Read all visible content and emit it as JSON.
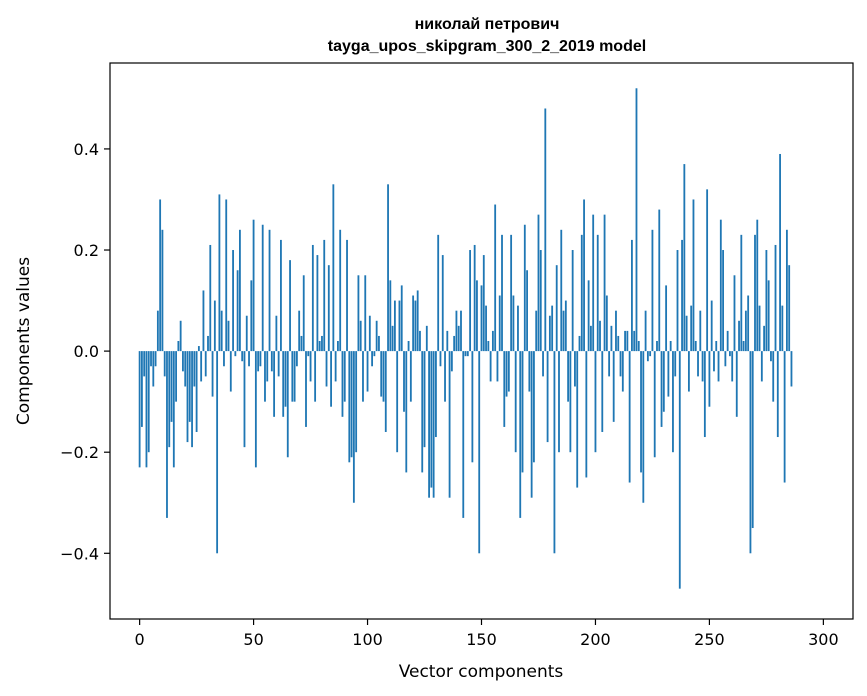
{
  "chart_data": {
    "type": "bar",
    "title": [
      "николай петрович",
      "tayga_upos_skipgram_300_2_2019 model"
    ],
    "xlabel": "Vector components",
    "ylabel": "Components values",
    "xlim": [
      -13,
      313
    ],
    "ylim": [
      -0.53,
      0.57
    ],
    "xticks": [
      0,
      50,
      100,
      150,
      200,
      250,
      300
    ],
    "yticks": [
      -0.4,
      -0.2,
      0.0,
      0.2,
      0.4
    ],
    "ytick_labels": [
      "−0.4",
      "−0.2",
      "0.0",
      "0.2",
      "0.4"
    ],
    "grid": false,
    "bar_color": "#1f77b4",
    "values": [
      -0.23,
      -0.15,
      -0.05,
      -0.23,
      -0.2,
      -0.03,
      -0.07,
      -0.03,
      0.08,
      0.3,
      0.24,
      -0.05,
      -0.33,
      -0.19,
      -0.14,
      -0.23,
      -0.1,
      0.02,
      0.06,
      -0.04,
      -0.07,
      -0.18,
      -0.14,
      -0.19,
      -0.07,
      -0.16,
      0.01,
      -0.06,
      0.12,
      -0.05,
      0.03,
      0.21,
      -0.09,
      0.1,
      -0.4,
      0.31,
      0.08,
      -0.03,
      0.3,
      0.06,
      -0.08,
      0.2,
      -0.01,
      0.16,
      0.24,
      -0.02,
      -0.19,
      0.07,
      -0.03,
      0.14,
      0.26,
      -0.23,
      -0.04,
      -0.03,
      0.25,
      -0.1,
      -0.06,
      0.24,
      -0.04,
      -0.13,
      0.07,
      -0.05,
      0.22,
      -0.13,
      -0.11,
      -0.21,
      0.18,
      -0.1,
      -0.1,
      -0.03,
      0.08,
      0.03,
      0.15,
      -0.15,
      -0.01,
      -0.06,
      0.21,
      -0.1,
      0.19,
      0.02,
      0.03,
      0.22,
      -0.07,
      0.17,
      -0.11,
      0.33,
      -0.06,
      0.02,
      0.24,
      -0.13,
      -0.1,
      0.22,
      -0.22,
      -0.21,
      -0.3,
      -0.2,
      0.15,
      0.06,
      -0.1,
      0.15,
      -0.08,
      0.07,
      -0.03,
      -0.01,
      0.06,
      0.03,
      -0.09,
      -0.1,
      -0.16,
      0.33,
      0.14,
      0.05,
      0.1,
      -0.2,
      0.1,
      0.13,
      -0.12,
      -0.24,
      0.02,
      -0.1,
      0.11,
      0.1,
      0.12,
      0.04,
      -0.24,
      -0.19,
      0.05,
      -0.29,
      -0.27,
      -0.29,
      -0.17,
      0.23,
      -0.03,
      0.19,
      -0.1,
      0.04,
      -0.29,
      -0.04,
      0.03,
      0.08,
      0.05,
      0.08,
      -0.33,
      -0.01,
      -0.01,
      0.2,
      -0.22,
      0.21,
      0.14,
      -0.4,
      0.13,
      0.19,
      0.09,
      0.02,
      -0.06,
      0.04,
      0.29,
      -0.06,
      0.11,
      0.23,
      -0.15,
      -0.09,
      -0.08,
      0.23,
      0.11,
      -0.2,
      0.09,
      -0.33,
      -0.24,
      0.25,
      0.16,
      -0.08,
      -0.29,
      -0.22,
      0.08,
      0.27,
      0.2,
      -0.05,
      0.48,
      -0.18,
      0.07,
      0.09,
      -0.4,
      0.17,
      -0.2,
      0.24,
      0.08,
      0.1,
      -0.1,
      -0.2,
      0.2,
      -0.07,
      -0.27,
      0.03,
      0.23,
      0.3,
      -0.25,
      0.14,
      0.05,
      0.27,
      -0.2,
      0.23,
      0.06,
      -0.16,
      0.27,
      0.11,
      -0.05,
      0.05,
      -0.14,
      0.08,
      0.03,
      -0.05,
      -0.08,
      0.04,
      0.04,
      -0.26,
      0.22,
      0.04,
      0.52,
      0.02,
      -0.24,
      -0.3,
      0.08,
      -0.02,
      -0.01,
      0.24,
      -0.21,
      0.02,
      0.28,
      -0.15,
      -0.12,
      0.13,
      -0.09,
      0.02,
      -0.2,
      -0.05,
      0.2,
      -0.47,
      0.22,
      0.37,
      0.07,
      -0.08,
      0.09,
      0.3,
      0.02,
      -0.05,
      0.08,
      -0.06,
      -0.17,
      0.32,
      -0.11,
      0.1,
      -0.04,
      0.02,
      -0.06,
      0.26,
      0.2,
      -0.03,
      0.04,
      -0.01,
      -0.06,
      0.15,
      -0.13,
      0.06,
      0.23,
      0.02,
      0.08,
      0.11,
      -0.4,
      -0.35,
      0.23,
      0.26,
      0.09,
      -0.06,
      0.05,
      0.2,
      0.14,
      -0.02,
      -0.1,
      0.21,
      -0.17,
      0.39,
      0.09,
      -0.26,
      0.24,
      0.17,
      -0.07
    ]
  }
}
